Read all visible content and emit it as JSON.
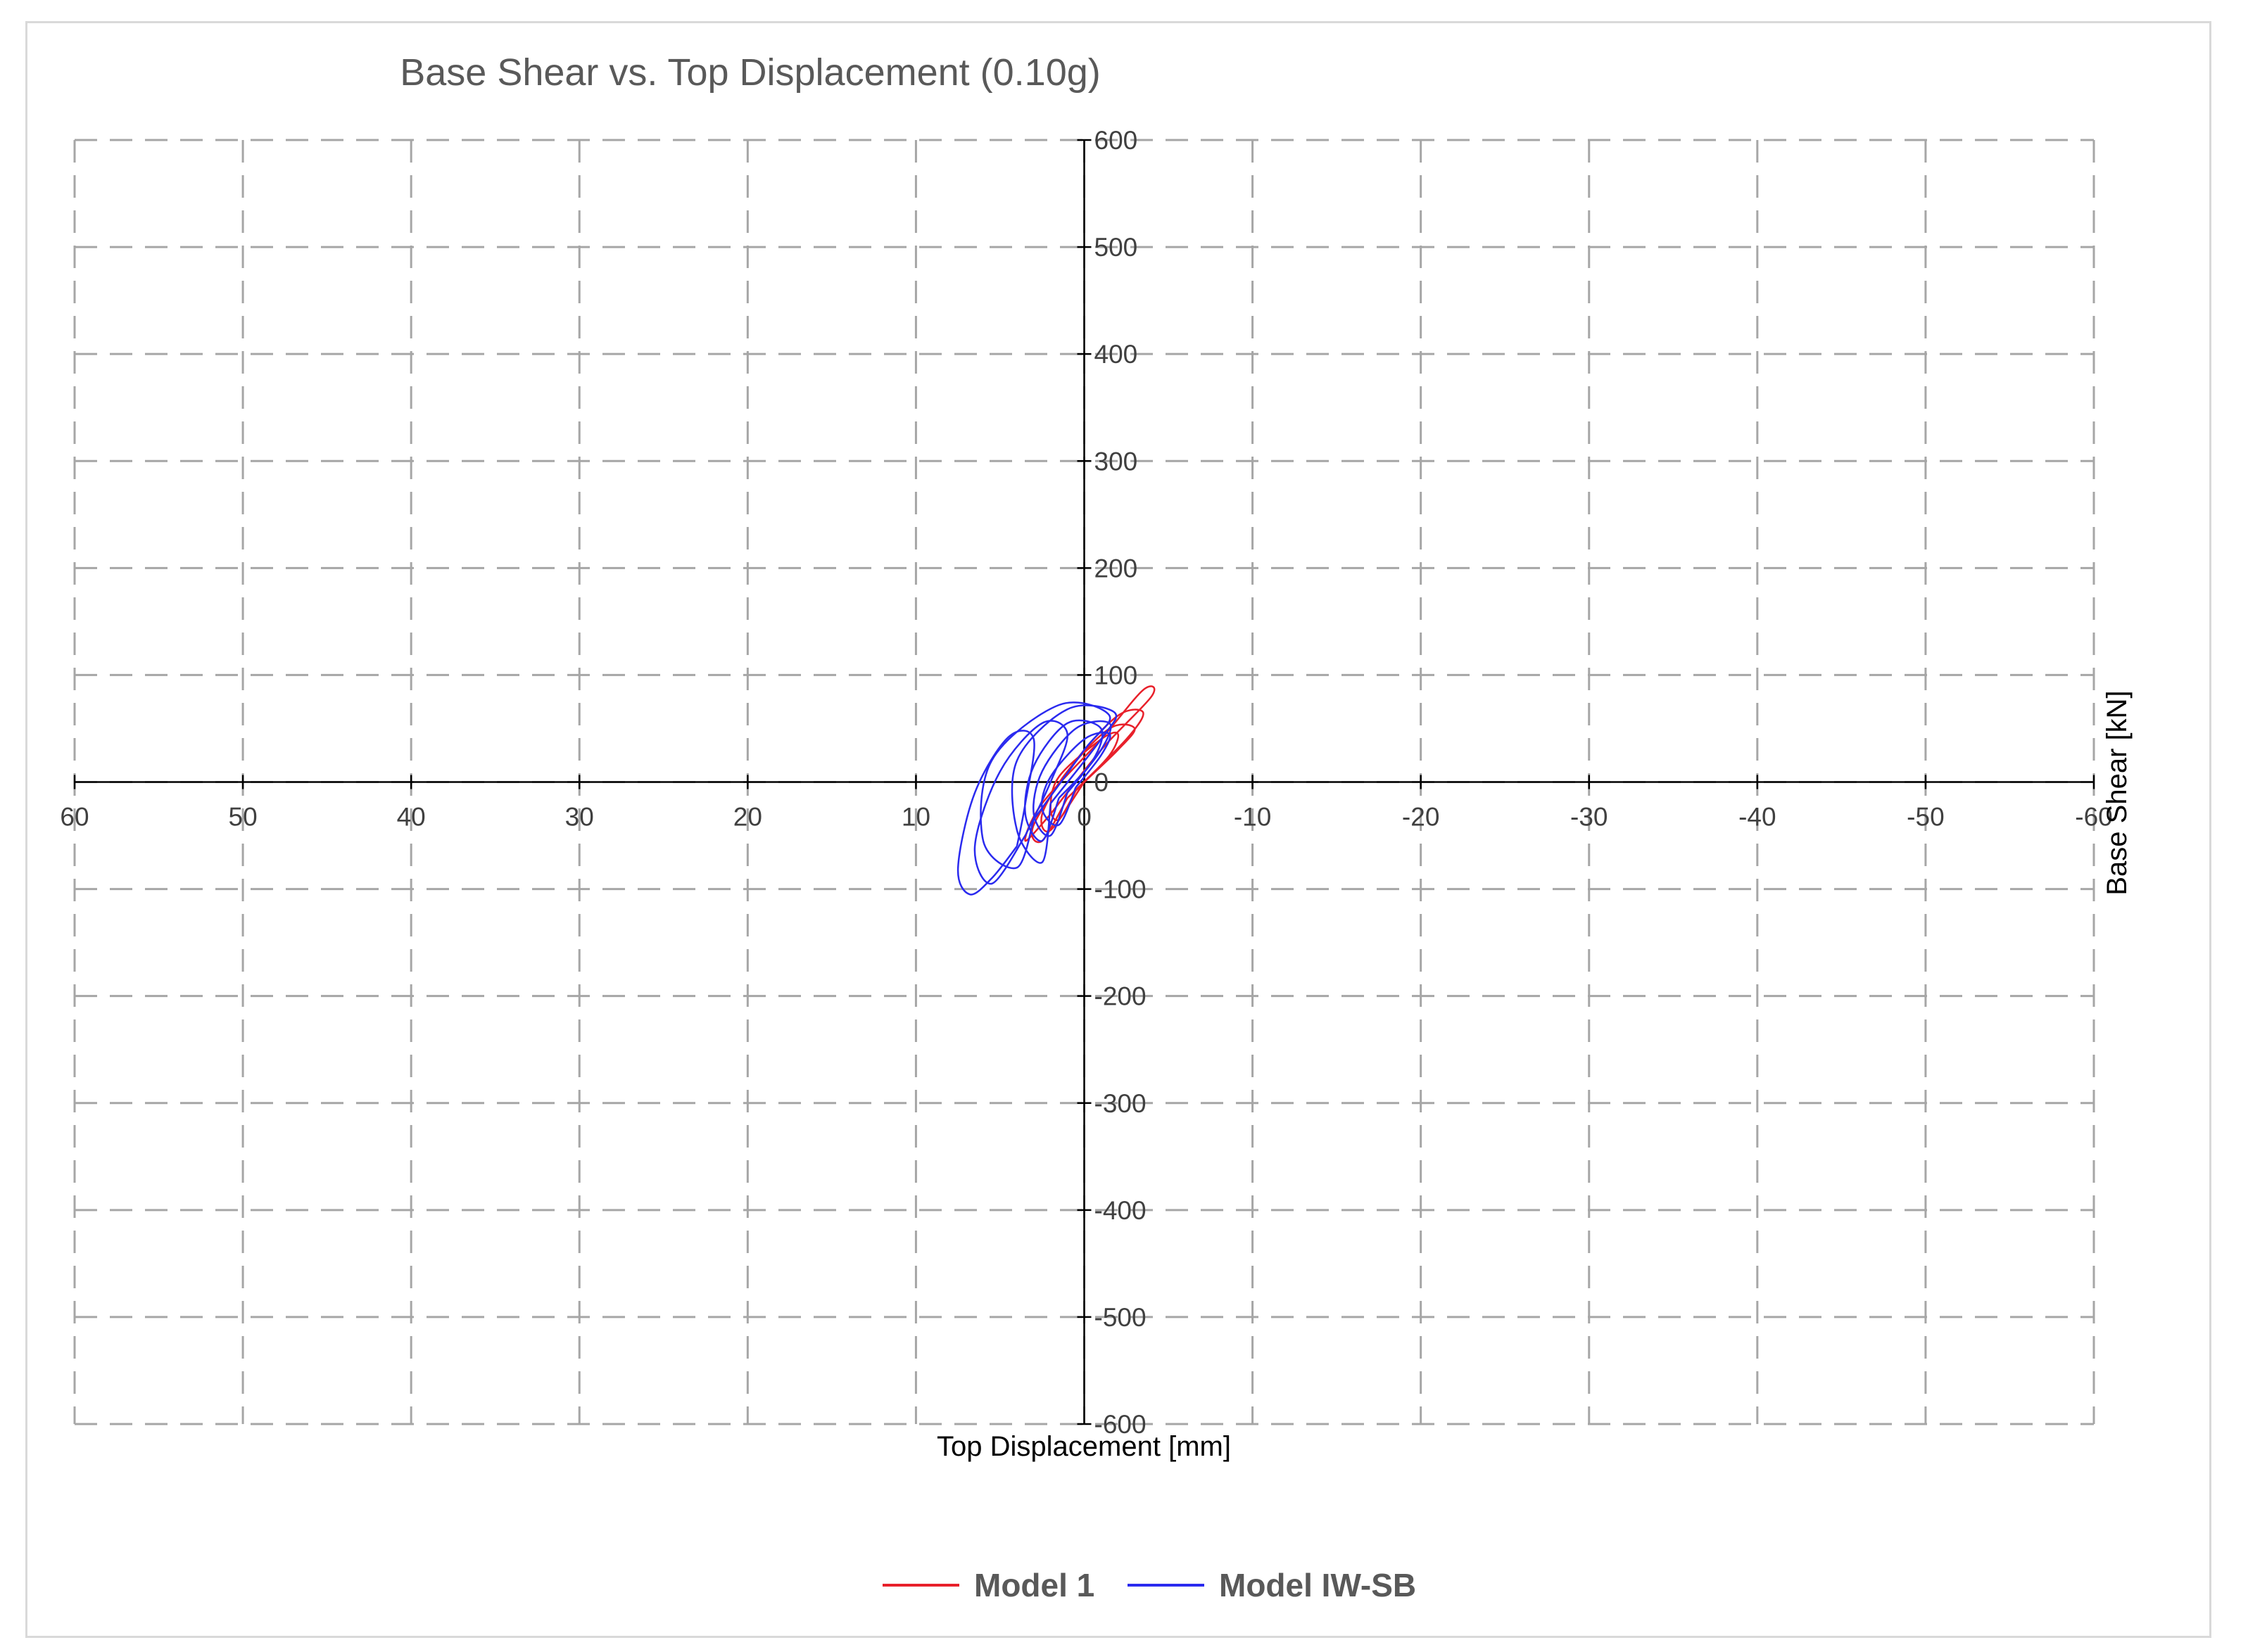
{
  "chart_data": {
    "type": "line",
    "title": "Base Shear vs. Top Displacement (0.10g)",
    "xlabel": "Top Displacement [mm]",
    "ylabel": "Base Shear [kN]",
    "xlim": [
      60,
      -60
    ],
    "ylim": [
      -600,
      600
    ],
    "x_reversed": true,
    "x_ticks": [
      60,
      50,
      40,
      30,
      20,
      10,
      0,
      -10,
      -20,
      -30,
      -40,
      -50,
      -60
    ],
    "y_ticks": [
      600,
      500,
      400,
      300,
      200,
      100,
      0,
      -100,
      -200,
      -300,
      -400,
      -500,
      -600
    ],
    "grid": true,
    "legend_position": "bottom",
    "series": [
      {
        "name": "Model 1",
        "color": "#e8202a",
        "loops": [
          [
            [
              0.5,
              -8
            ],
            [
              -1.5,
              25
            ],
            [
              -2,
              45
            ],
            [
              -1,
              40
            ],
            [
              1.5,
              5
            ],
            [
              2,
              -25
            ],
            [
              1.5,
              -35
            ],
            [
              0.5,
              -8
            ]
          ],
          [
            [
              1,
              -15
            ],
            [
              -2.5,
              40
            ],
            [
              -3.5,
              65
            ],
            [
              -2,
              62
            ],
            [
              0.5,
              20
            ],
            [
              3,
              -40
            ],
            [
              2.5,
              -55
            ],
            [
              1,
              -15
            ]
          ],
          [
            [
              2,
              -30
            ],
            [
              -1,
              30
            ],
            [
              -4,
              80
            ],
            [
              -3.5,
              86
            ],
            [
              -1,
              40
            ],
            [
              2.5,
              -20
            ],
            [
              3.5,
              -55
            ],
            [
              2,
              -30
            ]
          ],
          [
            [
              0,
              0
            ],
            [
              -2,
              30
            ],
            [
              -3,
              50
            ],
            [
              -1.5,
              50
            ],
            [
              1,
              10
            ],
            [
              2.5,
              -30
            ],
            [
              2,
              -45
            ],
            [
              0,
              0
            ]
          ]
        ]
      },
      {
        "name": "Model IW-SB",
        "color": "#2a2aef",
        "loops": [
          [
            [
              1,
              -10
            ],
            [
              -1,
              30
            ],
            [
              -1.5,
              55
            ],
            [
              0.5,
              50
            ],
            [
              2.5,
              10
            ],
            [
              3,
              -30
            ],
            [
              2,
              -50
            ],
            [
              1,
              -10
            ]
          ],
          [
            [
              2,
              -20
            ],
            [
              -1,
              40
            ],
            [
              -1.8,
              65
            ],
            [
              1,
              68
            ],
            [
              4,
              20
            ],
            [
              4,
              -45
            ],
            [
              2.5,
              -75
            ],
            [
              2,
              -20
            ]
          ],
          [
            [
              3,
              -35
            ],
            [
              0,
              30
            ],
            [
              -1.5,
              62
            ],
            [
              1.5,
              72
            ],
            [
              5.5,
              20
            ],
            [
              6,
              -55
            ],
            [
              4,
              -80
            ],
            [
              3,
              -35
            ]
          ],
          [
            [
              3.5,
              -50
            ],
            [
              2,
              0
            ],
            [
              1,
              45
            ],
            [
              2.5,
              55
            ],
            [
              5,
              10
            ],
            [
              6.5,
              -60
            ],
            [
              5.5,
              -95
            ],
            [
              3.5,
              -50
            ]
          ],
          [
            [
              4,
              -60
            ],
            [
              3.5,
              -20
            ],
            [
              3,
              40
            ],
            [
              4.5,
              42
            ],
            [
              6.5,
              -10
            ],
            [
              7.5,
              -80
            ],
            [
              6.8,
              -105
            ],
            [
              5.5,
              -90
            ],
            [
              4,
              -60
            ]
          ],
          [
            [
              0.5,
              -5
            ],
            [
              -1,
              25
            ],
            [
              -1.5,
              45
            ],
            [
              0,
              40
            ],
            [
              2,
              5
            ],
            [
              2.5,
              -25
            ],
            [
              1.5,
              -40
            ],
            [
              0.5,
              -5
            ]
          ],
          [
            [
              1.5,
              -15
            ],
            [
              -0.5,
              20
            ],
            [
              -1,
              50
            ],
            [
              1,
              55
            ],
            [
              3,
              15
            ],
            [
              3.5,
              -30
            ],
            [
              2.5,
              -55
            ],
            [
              1.5,
              -15
            ]
          ]
        ]
      }
    ]
  }
}
